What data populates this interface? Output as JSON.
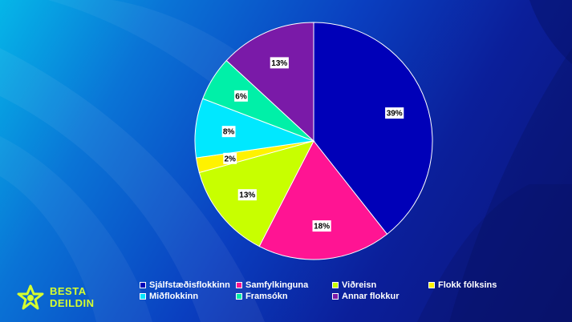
{
  "chart_data": {
    "type": "pie",
    "categories": [
      "Sjálfstæðisflokkinn",
      "Samfylkinguna",
      "Viðreisn",
      "Flokk fólksins",
      "Miðflokkinn",
      "Framsókn",
      "Annar flokkur"
    ],
    "values": [
      39,
      18,
      13,
      2,
      8,
      6,
      13
    ],
    "labels": [
      "39%",
      "18%",
      "13%",
      "2%",
      "8%",
      "6%",
      "13%"
    ],
    "colors": [
      "#0000b8",
      "#ff1493",
      "#c8ff00",
      "#fff200",
      "#00e8ff",
      "#00f0a8",
      "#7a1aa8"
    ],
    "legend_position": "bottom",
    "title": ""
  },
  "brand": {
    "line1": "BESTA",
    "line2": "DEILDIN",
    "color": "#d7ff2e"
  }
}
